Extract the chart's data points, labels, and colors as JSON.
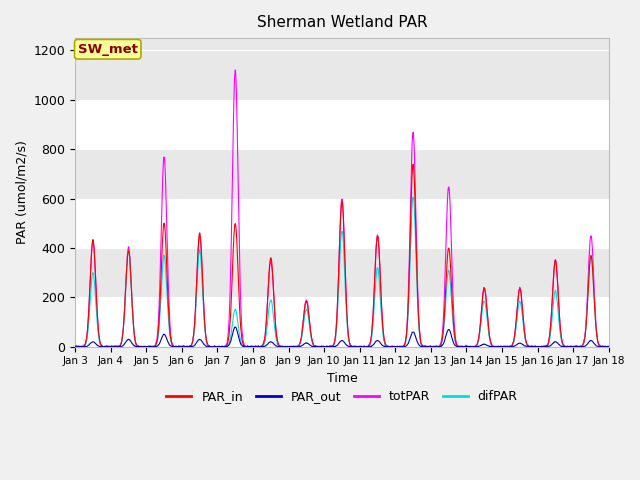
{
  "title": "Sherman Wetland PAR",
  "ylabel": "PAR (umol/m2/s)",
  "xlabel": "Time",
  "annotation": "SW_met",
  "ylim": [
    0,
    1250
  ],
  "yticks": [
    0,
    200,
    400,
    600,
    800,
    1000,
    1200
  ],
  "xtick_labels": [
    "Jan 3",
    "Jan 4",
    "Jan 5",
    "Jan 6",
    "Jan 7",
    "Jan 8",
    "Jan 9",
    "Jan 10",
    "Jan 11",
    "Jan 12",
    "Jan 13",
    "Jan 14",
    "Jan 15",
    "Jan 16",
    "Jan 17",
    "Jan 18"
  ],
  "series_colors": {
    "PAR_in": "#ff0000",
    "PAR_out": "#0000cc",
    "totPAR": "#ff00ff",
    "difPAR": "#00dddd"
  },
  "plot_bg_color": "#e8e8e8",
  "fig_bg_color": "#f0f0f0",
  "grid_color": "#ffffff",
  "annotation_bg": "#ffff99",
  "annotation_fg": "#880000",
  "annotation_border": "#aaaa00",
  "n_days": 15,
  "pts_per_day": 96,
  "tot_peaks": [
    430,
    400,
    770,
    450,
    1120,
    350,
    190,
    600,
    450,
    870,
    650,
    240,
    240,
    350,
    450
  ],
  "par_in_peaks": [
    430,
    390,
    500,
    460,
    500,
    360,
    185,
    590,
    450,
    740,
    400,
    235,
    235,
    350,
    370
  ],
  "par_out_peaks": [
    20,
    30,
    50,
    30,
    80,
    20,
    15,
    25,
    25,
    60,
    70,
    10,
    15,
    20,
    25
  ],
  "dif_peaks": [
    300,
    390,
    370,
    390,
    150,
    190,
    150,
    470,
    320,
    610,
    310,
    185,
    185,
    225,
    370
  ]
}
